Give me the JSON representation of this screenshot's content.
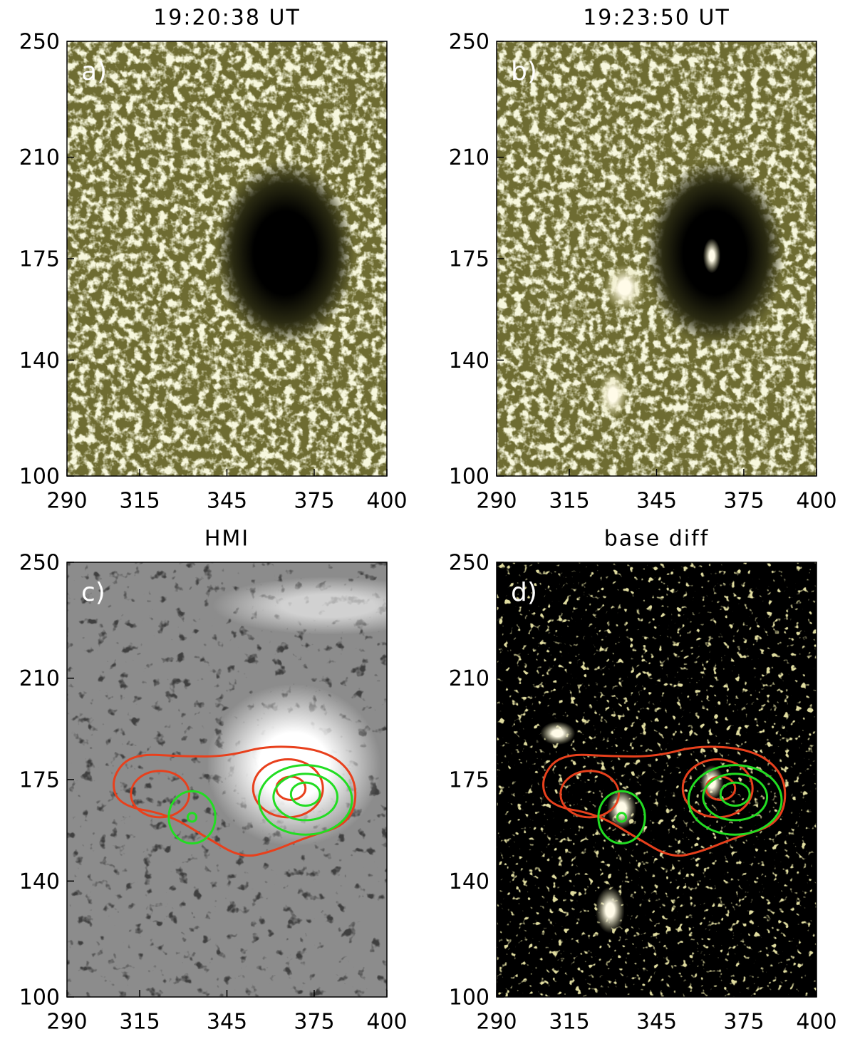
{
  "chart_data": [
    {
      "type": "image",
      "title": "19:20:38 UT",
      "label": "a)",
      "color": "#6e6c32",
      "xlim": [
        290,
        400
      ],
      "ylim": [
        100,
        250
      ],
      "xticks": [
        290,
        315,
        345,
        375,
        400
      ],
      "yticks": [
        100,
        140,
        175,
        210,
        250
      ]
    },
    {
      "type": "image",
      "title": "19:23:50 UT",
      "label": "b)",
      "color": "#6e6c32",
      "xlim": [
        290,
        400
      ],
      "ylim": [
        100,
        250
      ],
      "xticks": [
        290,
        315,
        345,
        375,
        400
      ],
      "yticks": [
        100,
        140,
        175,
        210,
        250
      ]
    },
    {
      "type": "image",
      "title": "HMI",
      "label": "c)",
      "color": "#8c8c8c",
      "xlim": [
        290,
        400
      ],
      "ylim": [
        100,
        250
      ],
      "xticks": [
        290,
        315,
        345,
        375,
        400
      ],
      "yticks": [
        100,
        140,
        175,
        210,
        250
      ]
    },
    {
      "type": "image",
      "title": "base diff",
      "label": "d)",
      "color": "#000000",
      "xlim": [
        290,
        400
      ],
      "ylim": [
        100,
        250
      ],
      "xticks": [
        290,
        315,
        345,
        375,
        400
      ],
      "yticks": [
        100,
        140,
        175,
        210,
        250
      ]
    }
  ]
}
